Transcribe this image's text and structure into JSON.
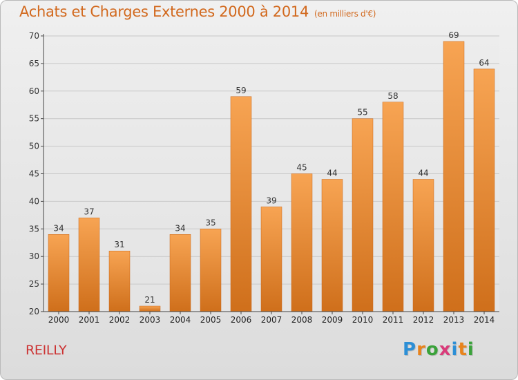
{
  "header": {
    "title": "Achats et Charges Externes 2000 à 2014",
    "unit": "(en milliers d'€)"
  },
  "commune": "REILLY",
  "logo": {
    "text": "Proxiti",
    "letter_colors": [
      "#2c8fd6",
      "#e8831c",
      "#3aa23a",
      "#d93b7a",
      "#2c8fd6",
      "#e8831c",
      "#3aa23a"
    ]
  },
  "colors": {
    "bar_top": "#f7a453",
    "bar_bottom": "#cf6f1b",
    "title": "#d2691e",
    "commune": "#cc3333"
  },
  "chart_data": {
    "type": "bar",
    "categories": [
      "2000",
      "2001",
      "2002",
      "2003",
      "2004",
      "2005",
      "2006",
      "2007",
      "2008",
      "2009",
      "2010",
      "2011",
      "2012",
      "2013",
      "2014"
    ],
    "values": [
      34,
      37,
      31,
      21,
      34,
      35,
      59,
      39,
      45,
      44,
      55,
      58,
      44,
      69,
      64
    ],
    "title": "Achats et Charges Externes 2000 à 2014",
    "xlabel": "",
    "ylabel": "",
    "ylim": [
      20,
      70
    ],
    "yticks": [
      20,
      25,
      30,
      35,
      40,
      45,
      50,
      55,
      60,
      65,
      70
    ],
    "grid": true,
    "legend": "none"
  }
}
